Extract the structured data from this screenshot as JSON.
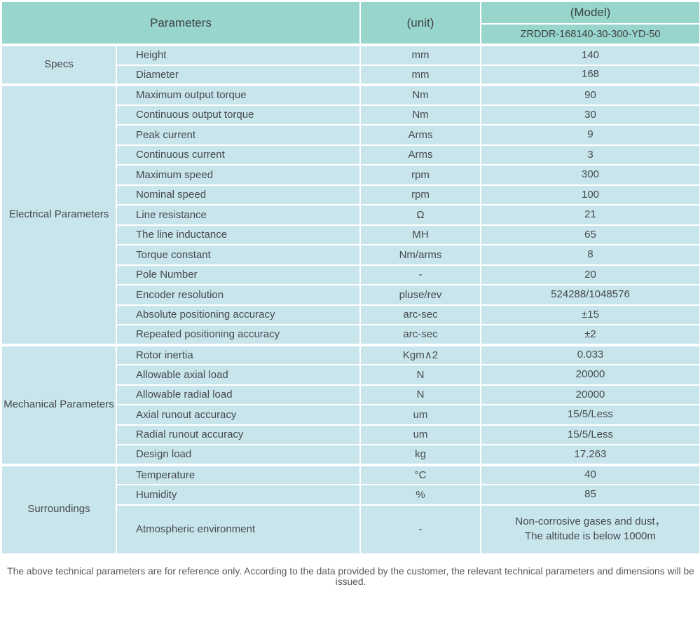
{
  "header": {
    "parameters_label": "Parameters",
    "unit_label": "(unit)",
    "model_label": "(Model)",
    "model_value": "ZRDDR-168140-30-300-YD-50"
  },
  "sections": [
    {
      "category": "Specs",
      "rows": [
        {
          "param": "Height",
          "unit": "mm",
          "value": "140"
        },
        {
          "param": "Diameter",
          "unit": "mm",
          "value": "168"
        }
      ]
    },
    {
      "category": "Electrical Parameters",
      "rows": [
        {
          "param": "Maximum output torque",
          "unit": "Nm",
          "value": "90"
        },
        {
          "param": "Continuous output torque",
          "unit": "Nm",
          "value": "30"
        },
        {
          "param": "Peak current",
          "unit": "Arms",
          "value": "9"
        },
        {
          "param": "Continuous current",
          "unit": "Arms",
          "value": "3"
        },
        {
          "param": "Maximum speed",
          "unit": "rpm",
          "value": "300"
        },
        {
          "param": "Nominal speed",
          "unit": "rpm",
          "value": "100"
        },
        {
          "param": "Line resistance",
          "unit": "Ω",
          "value": "21"
        },
        {
          "param": "The line inductance",
          "unit": "MH",
          "value": "65"
        },
        {
          "param": "Torque constant",
          "unit": "Nm/arms",
          "value": "8"
        },
        {
          "param": "Pole Number",
          "unit": "-",
          "value": "20"
        },
        {
          "param": "Encoder resolution",
          "unit": "pluse/rev",
          "value": "524288/1048576"
        },
        {
          "param": "Absolute positioning accuracy",
          "unit": "arc-sec",
          "value": "±15"
        },
        {
          "param": "Repeated positioning accuracy",
          "unit": "arc-sec",
          "value": "±2"
        }
      ]
    },
    {
      "category": "Mechanical Parameters",
      "rows": [
        {
          "param": "Rotor inertia",
          "unit": "Kgm∧2",
          "value": "0.033"
        },
        {
          "param": "Allowable axial load",
          "unit": "N",
          "value": "20000"
        },
        {
          "param": "Allowable radial load",
          "unit": "N",
          "value": "20000"
        },
        {
          "param": "Axial runout accuracy",
          "unit": "um",
          "value": "15/5/Less"
        },
        {
          "param": "Radial runout accuracy",
          "unit": "um",
          "value": "15/5/Less"
        },
        {
          "param": "Design load",
          "unit": "kg",
          "value": "17.263"
        }
      ]
    },
    {
      "category": "Surroundings",
      "rows": [
        {
          "param": "Temperature",
          "unit": "°C",
          "value": "40"
        },
        {
          "param": "Humidity",
          "unit": "%",
          "value": "85"
        },
        {
          "param": "Atmospheric environment",
          "unit": "-",
          "value": "Non-corrosive gases and dust，\nThe altitude is below 1000m"
        }
      ]
    }
  ],
  "footer_note": "The above technical parameters are for reference only. According to the data provided by the customer, the relevant technical parameters and dimensions will be issued.",
  "colors": {
    "header_bg": "#97d5cd",
    "cell_bg": "#c8e5ec",
    "divider": "#ffffff",
    "text": "#454a4d"
  }
}
